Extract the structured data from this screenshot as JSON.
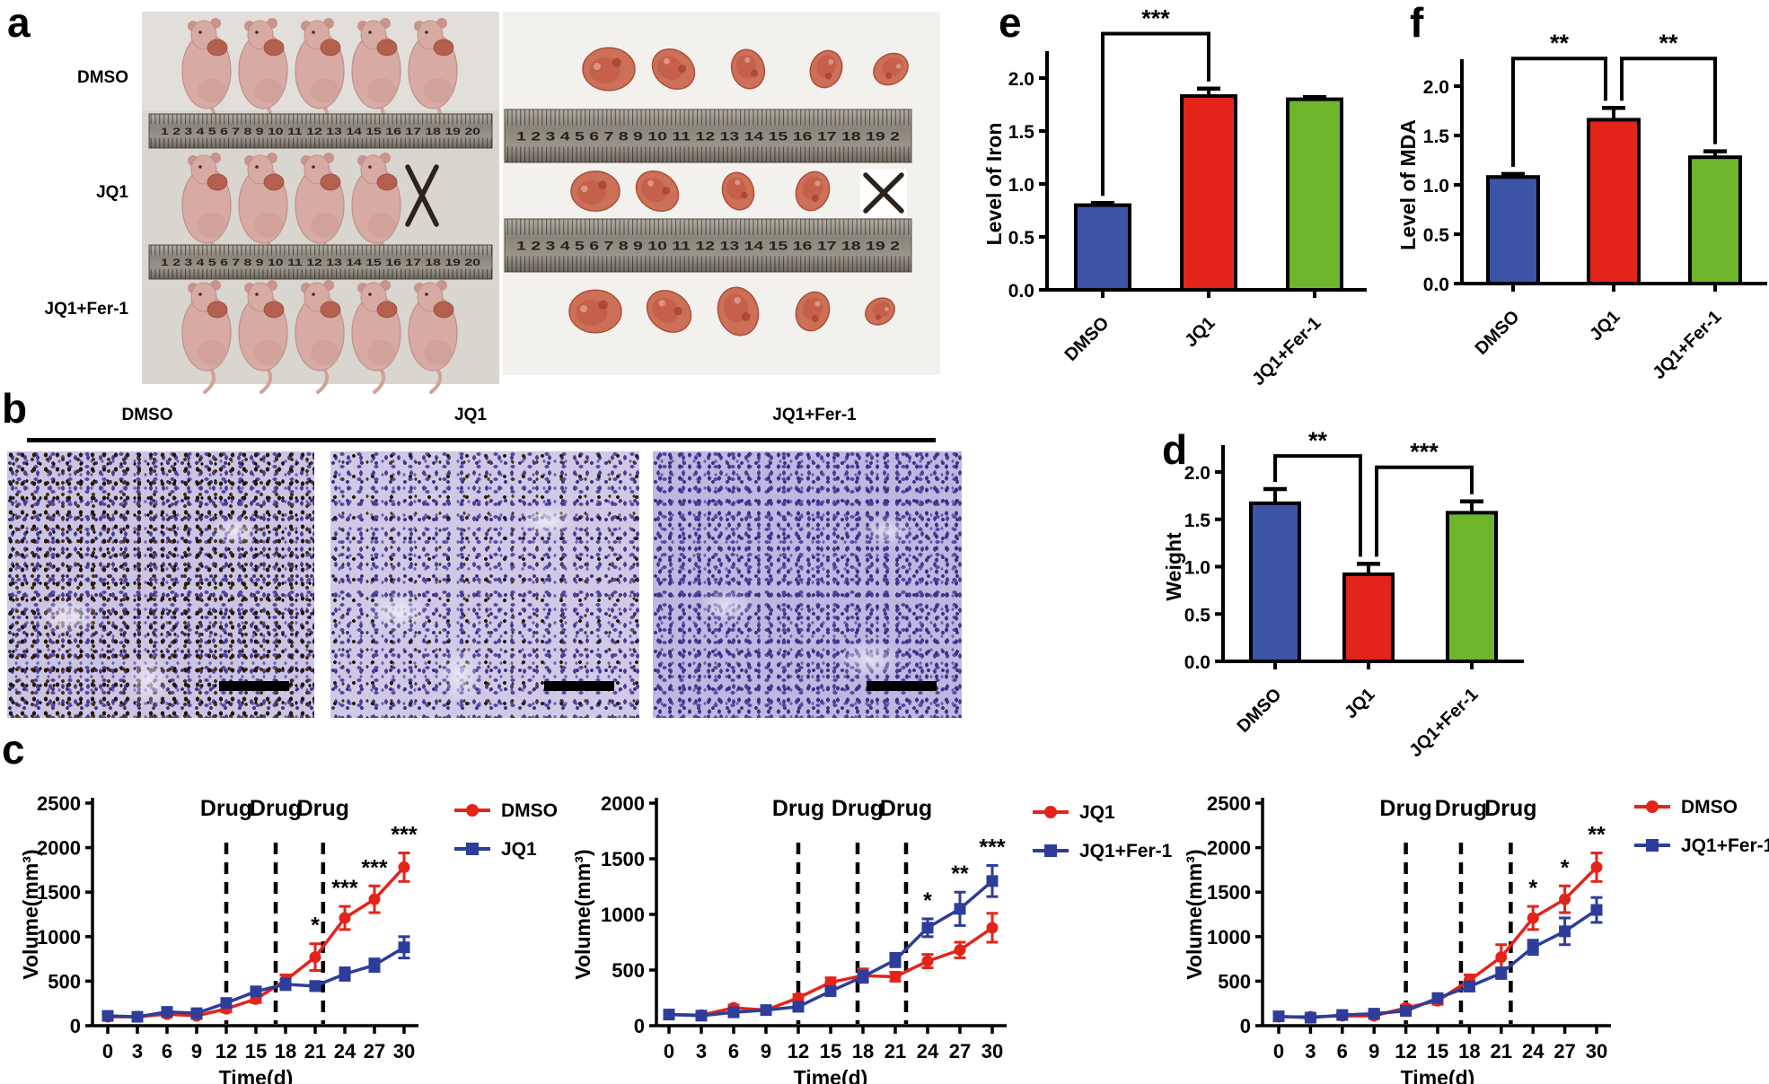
{
  "colors": {
    "blue": "#3B54A6",
    "red": "#E3241B",
    "green": "#6FB52C",
    "line_blue": "#2D3D99"
  },
  "panels": {
    "a": {
      "label": "a",
      "groups": [
        "DMSO",
        "JQ1",
        "JQ1+Fer-1"
      ],
      "mice_rows": [
        {
          "group": "DMSO",
          "count": 5,
          "crossed": false
        },
        {
          "group": "JQ1",
          "count": 4,
          "crossed": true
        },
        {
          "group": "JQ1+Fer-1",
          "count": 5,
          "crossed": false
        }
      ],
      "mice_ruler": "1 2 3 4 5 6 7 8 9 10 11 12 13 14 15 16 17 18 19 20",
      "tumor_rows": [
        {
          "count": 5,
          "crossed": false
        },
        {
          "count": 4,
          "crossed": true
        },
        {
          "count": 5,
          "crossed": false
        }
      ],
      "tumor_ruler": "1 2 3 4 5 6 7 8 9 10 11 12 13 14 15 16 17 18 19 2"
    },
    "b": {
      "label": "b",
      "columns": [
        "DMSO",
        "JQ1",
        "JQ1+Fer-1"
      ]
    },
    "c": {
      "label": "c"
    },
    "d": {
      "label": "d"
    },
    "e": {
      "label": "e"
    },
    "f": {
      "label": "f"
    }
  },
  "chart_data": [
    {
      "id": "chart-c1",
      "type": "line",
      "xlabel": "Time(d)",
      "ylabel": "Volume(mm³)",
      "x": [
        0,
        3,
        6,
        9,
        12,
        15,
        18,
        21,
        24,
        27,
        30
      ],
      "ylim": [
        0,
        2500
      ],
      "yticks": [
        0,
        500,
        1000,
        1500,
        2000,
        2500
      ],
      "drug_label": "Drug",
      "drug_lines": [
        12,
        17,
        21.8
      ],
      "legend_position": "right",
      "series": [
        {
          "name": "DMSO",
          "color": "#E3241B",
          "marker": "circle",
          "values": [
            100,
            100,
            130,
            110,
            190,
            300,
            510,
            770,
            1210,
            1420,
            1780
          ],
          "errors": [
            30,
            25,
            30,
            30,
            35,
            40,
            60,
            150,
            130,
            150,
            160
          ]
        },
        {
          "name": "JQ1",
          "color": "#2D3D99",
          "marker": "square",
          "values": [
            110,
            100,
            155,
            140,
            255,
            385,
            465,
            445,
            580,
            680,
            880
          ],
          "errors": [
            25,
            25,
            30,
            30,
            40,
            45,
            60,
            50,
            70,
            70,
            120
          ]
        }
      ],
      "sig_series": 0,
      "sig": [
        {
          "x": 21,
          "label": "*"
        },
        {
          "x": 24,
          "label": "***"
        },
        {
          "x": 27,
          "label": "***"
        },
        {
          "x": 30,
          "label": "***"
        }
      ]
    },
    {
      "id": "chart-c2",
      "type": "line",
      "xlabel": "Time(d)",
      "ylabel": "Volume(mm³)",
      "x": [
        0,
        3,
        6,
        9,
        12,
        15,
        18,
        21,
        24,
        27,
        30
      ],
      "ylim": [
        0,
        2000
      ],
      "yticks": [
        0,
        500,
        1000,
        1500,
        2000
      ],
      "drug_label": "Drug",
      "drug_lines": [
        12,
        17.5,
        22
      ],
      "legend_position": "right",
      "series": [
        {
          "name": "JQ1",
          "color": "#E3241B",
          "marker": "circle",
          "values": [
            100,
            95,
            160,
            140,
            250,
            390,
            450,
            440,
            580,
            680,
            880
          ],
          "errors": [
            20,
            20,
            25,
            25,
            30,
            40,
            60,
            40,
            60,
            70,
            130
          ]
        },
        {
          "name": "JQ1+Fer-1",
          "color": "#2D3D99",
          "marker": "square",
          "values": [
            100,
            90,
            120,
            140,
            170,
            310,
            440,
            590,
            880,
            1050,
            1300
          ],
          "errors": [
            20,
            20,
            25,
            25,
            30,
            40,
            50,
            60,
            80,
            150,
            140
          ]
        }
      ],
      "sig_series": 1,
      "sig": [
        {
          "x": 24,
          "label": "*"
        },
        {
          "x": 27,
          "label": "**"
        },
        {
          "x": 30,
          "label": "***"
        }
      ]
    },
    {
      "id": "chart-c3",
      "type": "line",
      "xlabel": "Time(d)",
      "ylabel": "Volume(mm³)",
      "x": [
        0,
        3,
        6,
        9,
        12,
        15,
        18,
        21,
        24,
        27,
        30
      ],
      "ylim": [
        0,
        2500
      ],
      "yticks": [
        0,
        500,
        1000,
        1500,
        2000,
        2500
      ],
      "drug_label": "Drug",
      "drug_lines": [
        12,
        17.2,
        21.9
      ],
      "legend_position": "right",
      "series": [
        {
          "name": "DMSO",
          "color": "#E3241B",
          "marker": "circle",
          "values": [
            100,
            100,
            110,
            110,
            200,
            280,
            510,
            770,
            1210,
            1420,
            1780
          ],
          "errors": [
            30,
            25,
            25,
            30,
            30,
            40,
            60,
            140,
            130,
            150,
            160
          ]
        },
        {
          "name": "JQ1+Fer-1",
          "color": "#2D3D99",
          "marker": "square",
          "values": [
            105,
            90,
            120,
            135,
            165,
            310,
            440,
            590,
            880,
            1060,
            1300
          ],
          "errors": [
            25,
            20,
            25,
            30,
            30,
            40,
            50,
            60,
            80,
            150,
            140
          ]
        }
      ],
      "sig_series": 0,
      "sig": [
        {
          "x": 24,
          "label": "*"
        },
        {
          "x": 27,
          "label": "*"
        },
        {
          "x": 30,
          "label": "**"
        }
      ]
    },
    {
      "id": "chart-d",
      "type": "bar",
      "ylabel": "Weight",
      "categories": [
        "DMSO",
        "JQ1",
        "JQ1+Fer-1"
      ],
      "values": [
        1.67,
        0.92,
        1.57
      ],
      "errors": [
        0.15,
        0.11,
        0.12
      ],
      "colors": [
        "#3B54A6",
        "#E3241B",
        "#6FB52C"
      ],
      "yticks": [
        0,
        0.5,
        1.0,
        1.5,
        2.0
      ],
      "ytick_labels": [
        "0.0",
        "0.5",
        "1.0",
        "1.5",
        "2.0"
      ],
      "sig": [
        {
          "from": 0,
          "to": 1,
          "label": "**",
          "apex": 2.17,
          "x2_off": -9
        },
        {
          "from": 1,
          "to": 2,
          "label": "***",
          "apex": 2.05,
          "x1_off": 9
        }
      ]
    },
    {
      "id": "chart-e",
      "type": "bar",
      "ylabel": "Level of Iron",
      "categories": [
        "DMSO",
        "JQ1",
        "JQ1+Fer-1"
      ],
      "values": [
        0.8,
        1.83,
        1.8
      ],
      "errors": [
        0.02,
        0.07,
        0.02
      ],
      "colors": [
        "#3B54A6",
        "#E3241B",
        "#6FB52C"
      ],
      "yticks": [
        0,
        0.5,
        1.0,
        1.5,
        2.0
      ],
      "ytick_labels": [
        "0.0",
        "0.5",
        "1.0",
        "1.5",
        "2.0"
      ],
      "sig": [
        {
          "from": 0,
          "to": 1,
          "label": "***",
          "apex": 2.42
        }
      ]
    },
    {
      "id": "chart-f",
      "type": "bar",
      "ylabel": "Level of MDA",
      "categories": [
        "DMSO",
        "JQ1",
        "JQ1+Fer-1"
      ],
      "values": [
        1.08,
        1.66,
        1.28
      ],
      "errors": [
        0.03,
        0.12,
        0.06
      ],
      "colors": [
        "#3B54A6",
        "#E3241B",
        "#6FB52C"
      ],
      "yticks": [
        0,
        0.5,
        1.0,
        1.5,
        2.0
      ],
      "ytick_labels": [
        "0.0",
        "0.5",
        "1.0",
        "1.5",
        "2.0"
      ],
      "sig": [
        {
          "from": 0,
          "to": 1,
          "label": "**",
          "apex": 2.28,
          "x2_off": -9
        },
        {
          "from": 1,
          "to": 2,
          "label": "**",
          "apex": 2.28,
          "x1_off": 9
        }
      ]
    }
  ]
}
